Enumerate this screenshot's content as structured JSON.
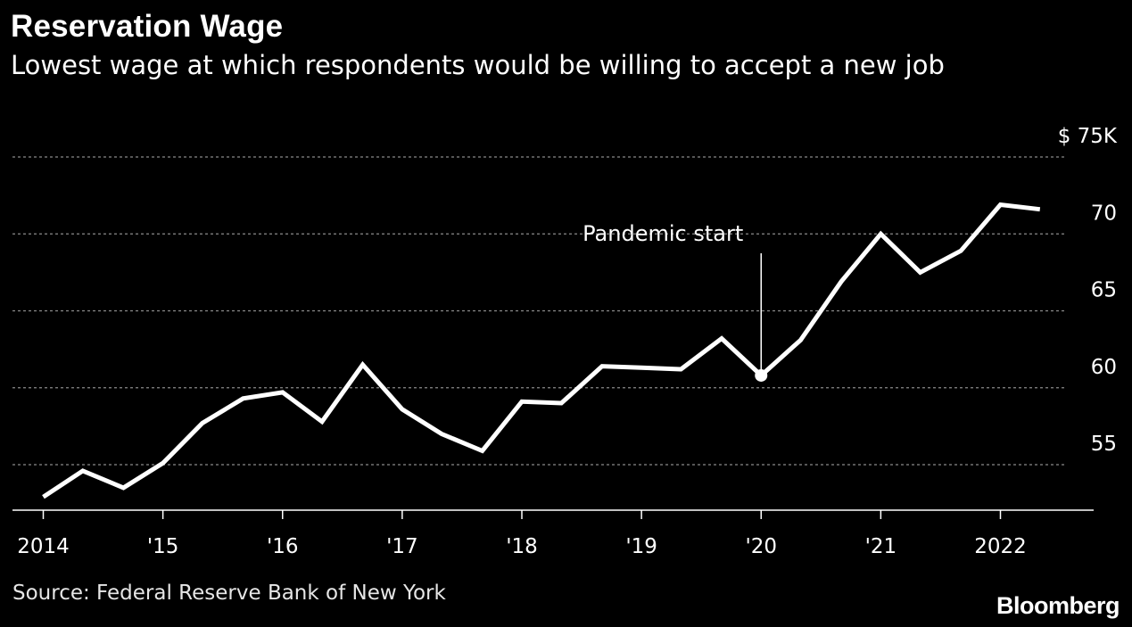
{
  "header": {
    "title": "Reservation Wage",
    "subtitle": "Lowest wage at which respondents would be willing to accept a new job"
  },
  "footer": {
    "source": "Source: Federal Reserve Bank of New York",
    "brand": "Bloomberg"
  },
  "colors": {
    "background": "#000000",
    "line": "#ffffff",
    "grid": "#8a8a8a"
  },
  "chart_data": {
    "type": "line",
    "title": "Reservation Wage",
    "subtitle": "Lowest wage at which respondents would be willing to accept a new job",
    "xlabel": "",
    "ylabel": "",
    "ylim": [
      52.5,
      75
    ],
    "xlim": [
      2013.75,
      2022.9
    ],
    "grid": true,
    "y_ticks": [
      {
        "value": 75,
        "label": "$ 75K"
      },
      {
        "value": 70,
        "label": "70"
      },
      {
        "value": 65,
        "label": "65"
      },
      {
        "value": 60,
        "label": "60"
      },
      {
        "value": 55,
        "label": "55"
      }
    ],
    "x_ticks": [
      {
        "value": 2014,
        "label": "2014"
      },
      {
        "value": 2015,
        "label": "'15"
      },
      {
        "value": 2016,
        "label": "'16"
      },
      {
        "value": 2017,
        "label": "'17"
      },
      {
        "value": 2018,
        "label": "'18"
      },
      {
        "value": 2019,
        "label": "'19"
      },
      {
        "value": 2020,
        "label": "'20"
      },
      {
        "value": 2021,
        "label": "'21"
      },
      {
        "value": 2022,
        "label": "2022"
      }
    ],
    "series": [
      {
        "values": [
          {
            "x": 2014.0,
            "y": 52.9
          },
          {
            "x": 2014.33,
            "y": 54.6
          },
          {
            "x": 2014.67,
            "y": 53.5
          },
          {
            "x": 2015.0,
            "y": 55.1
          },
          {
            "x": 2015.33,
            "y": 57.7
          },
          {
            "x": 2015.67,
            "y": 59.3
          },
          {
            "x": 2016.0,
            "y": 59.7
          },
          {
            "x": 2016.33,
            "y": 57.8
          },
          {
            "x": 2016.67,
            "y": 61.5
          },
          {
            "x": 2017.0,
            "y": 58.6
          },
          {
            "x": 2017.33,
            "y": 57.0
          },
          {
            "x": 2017.67,
            "y": 55.9
          },
          {
            "x": 2018.0,
            "y": 59.1
          },
          {
            "x": 2018.33,
            "y": 59.0
          },
          {
            "x": 2018.67,
            "y": 61.4
          },
          {
            "x": 2019.0,
            "y": 61.3
          },
          {
            "x": 2019.33,
            "y": 61.2
          },
          {
            "x": 2019.67,
            "y": 63.2
          },
          {
            "x": 2020.0,
            "y": 60.8
          },
          {
            "x": 2020.33,
            "y": 63.1
          },
          {
            "x": 2020.67,
            "y": 66.9
          },
          {
            "x": 2021.0,
            "y": 70.0
          },
          {
            "x": 2021.33,
            "y": 67.5
          },
          {
            "x": 2021.67,
            "y": 68.9
          },
          {
            "x": 2022.0,
            "y": 71.9
          },
          {
            "x": 2022.33,
            "y": 71.6
          }
        ]
      }
    ],
    "annotations": [
      {
        "label": "Pandemic start",
        "x": 2020.0,
        "y": 60.8
      }
    ]
  }
}
